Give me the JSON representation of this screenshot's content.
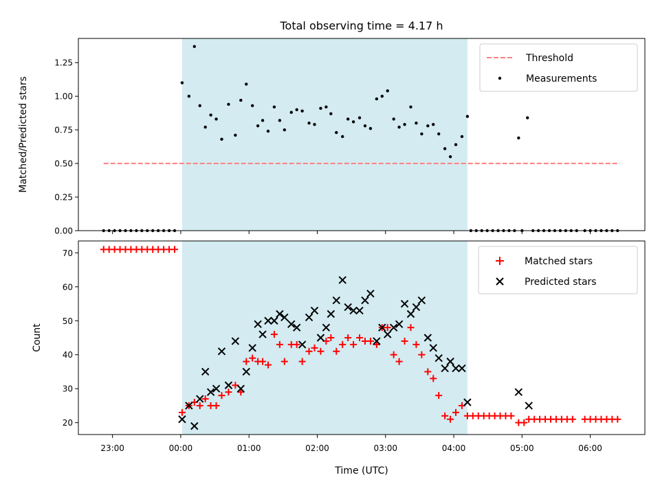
{
  "chart_data": {
    "type": "scatter",
    "title": "Total observing time = 4.17 h",
    "xlabel": "Time (UTC)",
    "x_ticks": [
      "23:00",
      "00:00",
      "01:00",
      "02:00",
      "03:00",
      "04:00",
      "05:00",
      "06:00"
    ],
    "x_tick_hours": [
      -1,
      0,
      1,
      2,
      3,
      4,
      5,
      6
    ],
    "xlim_hours": [
      -1.5,
      6.8
    ],
    "shaded_interval_hours": [
      0.02,
      4.2
    ],
    "shade_color": "#d3ebf1",
    "panels": [
      {
        "ylabel": "Matched/Predicted stars",
        "ylim": [
          0,
          1.43
        ],
        "y_ticks": [
          0.0,
          0.25,
          0.5,
          0.75,
          1.0,
          1.25
        ],
        "y_tick_labels": [
          "0.00",
          "0.25",
          "0.50",
          "0.75",
          "1.00",
          "1.25"
        ],
        "legend": {
          "placement": "top-right",
          "entries": [
            "Threshold",
            "Measurements"
          ]
        },
        "threshold": {
          "name": "Threshold",
          "y": 0.5,
          "x_range": [
            -1.13,
            6.43
          ],
          "color": "#ff7f7f"
        },
        "measurements": {
          "name": "Measurements",
          "color": "#000000",
          "x": [
            -1.13,
            -1.05,
            -0.97,
            -0.89,
            -0.81,
            -0.73,
            -0.65,
            -0.57,
            -0.49,
            -0.41,
            -0.33,
            -0.25,
            -0.17,
            -0.09,
            0.02,
            0.12,
            0.2,
            0.28,
            0.36,
            0.44,
            0.52,
            0.6,
            0.7,
            0.8,
            0.88,
            0.96,
            1.05,
            1.13,
            1.2,
            1.28,
            1.37,
            1.45,
            1.52,
            1.62,
            1.7,
            1.78,
            1.88,
            1.96,
            2.05,
            2.13,
            2.2,
            2.28,
            2.37,
            2.45,
            2.53,
            2.62,
            2.7,
            2.78,
            2.87,
            2.95,
            3.03,
            3.12,
            3.2,
            3.28,
            3.37,
            3.45,
            3.53,
            3.62,
            3.7,
            3.78,
            3.87,
            3.95,
            4.03,
            4.12,
            4.2,
            4.25,
            4.33,
            4.41,
            4.49,
            4.57,
            4.65,
            4.73,
            4.81,
            4.89,
            5.0,
            5.16,
            5.24,
            5.32,
            5.4,
            5.48,
            5.56,
            5.64,
            5.72,
            5.8,
            5.92,
            6.0,
            6.08,
            6.16,
            6.24,
            6.32,
            6.4,
            4.95,
            5.08
          ],
          "y": [
            0,
            0,
            0,
            0,
            0,
            0,
            0,
            0,
            0,
            0,
            0,
            0,
            0,
            0,
            1.1,
            1.0,
            1.37,
            0.93,
            0.77,
            0.86,
            0.83,
            0.68,
            0.94,
            0.71,
            0.97,
            1.09,
            0.93,
            0.78,
            0.82,
            0.74,
            0.92,
            0.82,
            0.75,
            0.88,
            0.9,
            0.89,
            0.8,
            0.79,
            0.91,
            0.92,
            0.87,
            0.73,
            0.7,
            0.83,
            0.81,
            0.84,
            0.78,
            0.76,
            0.98,
            1.0,
            1.04,
            0.83,
            0.77,
            0.79,
            0.92,
            0.8,
            0.72,
            0.78,
            0.79,
            0.72,
            0.61,
            0.55,
            0.64,
            0.7,
            0.85,
            0,
            0,
            0,
            0,
            0,
            0,
            0,
            0,
            0,
            0,
            0,
            0,
            0,
            0,
            0,
            0,
            0,
            0,
            0,
            0,
            0,
            0,
            0,
            0,
            0,
            0,
            0.69,
            0.84
          ]
        }
      },
      {
        "ylabel": "Count",
        "ylim": [
          16.5,
          73.5
        ],
        "y_ticks": [
          20,
          30,
          40,
          50,
          60,
          70
        ],
        "y_tick_labels": [
          "20",
          "30",
          "40",
          "50",
          "60",
          "70"
        ],
        "legend": {
          "placement": "top-right",
          "entries": [
            "Matched stars",
            "Predicted stars"
          ]
        },
        "series": [
          {
            "name": "Matched stars",
            "marker": "plus",
            "color": "#ff0000",
            "x": [
              -1.13,
              -1.05,
              -0.97,
              -0.89,
              -0.81,
              -0.73,
              -0.65,
              -0.57,
              -0.49,
              -0.41,
              -0.33,
              -0.25,
              -0.17,
              -0.09,
              0.02,
              0.12,
              0.2,
              0.28,
              0.36,
              0.44,
              0.52,
              0.6,
              0.7,
              0.8,
              0.88,
              0.96,
              1.05,
              1.13,
              1.2,
              1.28,
              1.37,
              1.45,
              1.52,
              1.62,
              1.7,
              1.78,
              1.88,
              1.96,
              2.05,
              2.13,
              2.2,
              2.28,
              2.37,
              2.45,
              2.53,
              2.62,
              2.7,
              2.78,
              2.87,
              2.95,
              3.03,
              3.12,
              3.2,
              3.28,
              3.37,
              3.45,
              3.53,
              3.62,
              3.7,
              3.78,
              3.87,
              3.95,
              4.03,
              4.12,
              4.2,
              4.28,
              4.36,
              4.44,
              4.52,
              4.6,
              4.68,
              4.76,
              4.84,
              4.95,
              5.03,
              5.1,
              5.18,
              5.26,
              5.34,
              5.42,
              5.5,
              5.58,
              5.66,
              5.74,
              5.92,
              6.0,
              6.08,
              6.16,
              6.24,
              6.32,
              6.4
            ],
            "y": [
              71,
              71,
              71,
              71,
              71,
              71,
              71,
              71,
              71,
              71,
              71,
              71,
              71,
              71,
              23,
              25,
              26,
              25,
              27,
              25,
              25,
              28,
              29,
              31,
              29,
              38,
              39,
              38,
              38,
              37,
              46,
              43,
              38,
              43,
              43,
              38,
              41,
              42,
              41,
              44,
              45,
              41,
              43,
              45,
              43,
              45,
              44,
              44,
              43,
              48,
              48,
              40,
              38,
              44,
              48,
              43,
              40,
              35,
              33,
              28,
              22,
              21,
              23,
              25,
              22,
              22,
              22,
              22,
              22,
              22,
              22,
              22,
              22,
              20,
              20,
              21,
              21,
              21,
              21,
              21,
              21,
              21,
              21,
              21,
              21,
              21,
              21,
              21,
              21,
              21,
              21
            ]
          },
          {
            "name": "Predicted stars",
            "marker": "x",
            "color": "#000000",
            "x": [
              0.02,
              0.12,
              0.2,
              0.28,
              0.36,
              0.44,
              0.52,
              0.6,
              0.7,
              0.8,
              0.88,
              0.96,
              1.05,
              1.13,
              1.2,
              1.28,
              1.37,
              1.45,
              1.52,
              1.62,
              1.7,
              1.78,
              1.88,
              1.96,
              2.05,
              2.13,
              2.2,
              2.28,
              2.37,
              2.45,
              2.53,
              2.62,
              2.7,
              2.78,
              2.87,
              2.95,
              3.03,
              3.12,
              3.2,
              3.28,
              3.37,
              3.45,
              3.53,
              3.62,
              3.7,
              3.78,
              3.87,
              3.95,
              4.03,
              4.12,
              4.2,
              4.95,
              5.1
            ],
            "y": [
              21,
              25,
              19,
              27,
              35,
              29,
              30,
              41,
              31,
              44,
              30,
              35,
              42,
              49,
              46,
              50,
              50,
              52,
              51,
              49,
              48,
              43,
              51,
              53,
              45,
              48,
              52,
              56,
              62,
              54,
              53,
              53,
              56,
              58,
              44,
              48,
              46,
              48,
              49,
              55,
              52,
              54,
              56,
              45,
              42,
              39,
              36,
              38,
              36,
              36,
              26,
              29,
              25
            ]
          }
        ]
      }
    ]
  }
}
